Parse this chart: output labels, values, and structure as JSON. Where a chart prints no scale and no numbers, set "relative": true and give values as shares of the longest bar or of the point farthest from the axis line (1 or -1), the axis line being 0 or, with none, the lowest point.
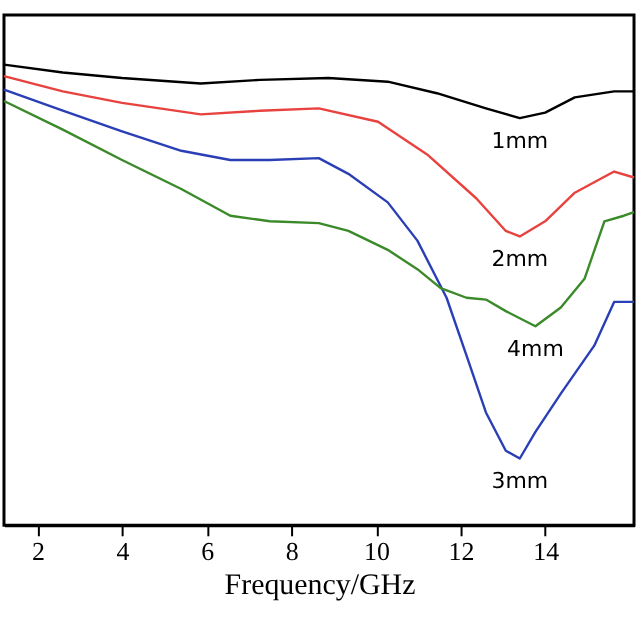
{
  "chart_data": {
    "type": "line",
    "relative": true,
    "xlabel": "Frequency/GHz",
    "xlim": [
      1.21,
      16.1
    ],
    "xticks": [
      2,
      4,
      6,
      8,
      10,
      12,
      14
    ],
    "grid": false,
    "line_style": "solid",
    "marker": "none",
    "series": [
      {
        "name": "1mm",
        "color": "#000000",
        "x": [
          1.21,
          2.6,
          4.0,
          5.86,
          7.26,
          8.88,
          10.28,
          11.44,
          12.6,
          13.4,
          14.0,
          14.7,
          15.63,
          16.1
        ],
        "values": [
          1.0,
          0.983,
          0.971,
          0.959,
          0.967,
          0.971,
          0.963,
          0.938,
          0.905,
          0.884,
          0.896,
          0.929,
          0.942,
          0.942
        ]
      },
      {
        "name": "2mm",
        "color": "#e8423f",
        "x": [
          1.21,
          2.6,
          4.0,
          5.86,
          7.26,
          8.65,
          10.05,
          11.21,
          12.37,
          13.07,
          13.4,
          14.0,
          14.7,
          15.63,
          16.1
        ],
        "values": [
          0.975,
          0.942,
          0.917,
          0.892,
          0.9,
          0.905,
          0.876,
          0.805,
          0.71,
          0.639,
          0.627,
          0.66,
          0.722,
          0.768,
          0.755
        ]
      },
      {
        "name": "3mm",
        "color": "#2a3fb5",
        "x": [
          1.21,
          2.6,
          4.0,
          5.4,
          6.56,
          7.49,
          8.65,
          9.35,
          10.28,
          10.98,
          11.67,
          12.14,
          12.6,
          13.07,
          13.4,
          13.77,
          14.37,
          15.16,
          15.63,
          16.1
        ],
        "values": [
          0.946,
          0.9,
          0.855,
          0.813,
          0.793,
          0.793,
          0.797,
          0.763,
          0.701,
          0.618,
          0.494,
          0.369,
          0.245,
          0.162,
          0.145,
          0.203,
          0.286,
          0.39,
          0.485,
          0.485
        ]
      },
      {
        "name": "4mm",
        "color": "#3a8a2a",
        "x": [
          1.21,
          2.6,
          4.0,
          5.4,
          6.56,
          7.49,
          8.65,
          9.35,
          10.28,
          10.98,
          11.53,
          12.14,
          12.6,
          13.07,
          13.77,
          14.37,
          14.93,
          15.4,
          15.86,
          16.1
        ],
        "values": [
          0.921,
          0.859,
          0.793,
          0.73,
          0.672,
          0.66,
          0.656,
          0.639,
          0.598,
          0.556,
          0.515,
          0.494,
          0.49,
          0.465,
          0.432,
          0.473,
          0.535,
          0.66,
          0.672,
          0.68
        ]
      }
    ]
  }
}
